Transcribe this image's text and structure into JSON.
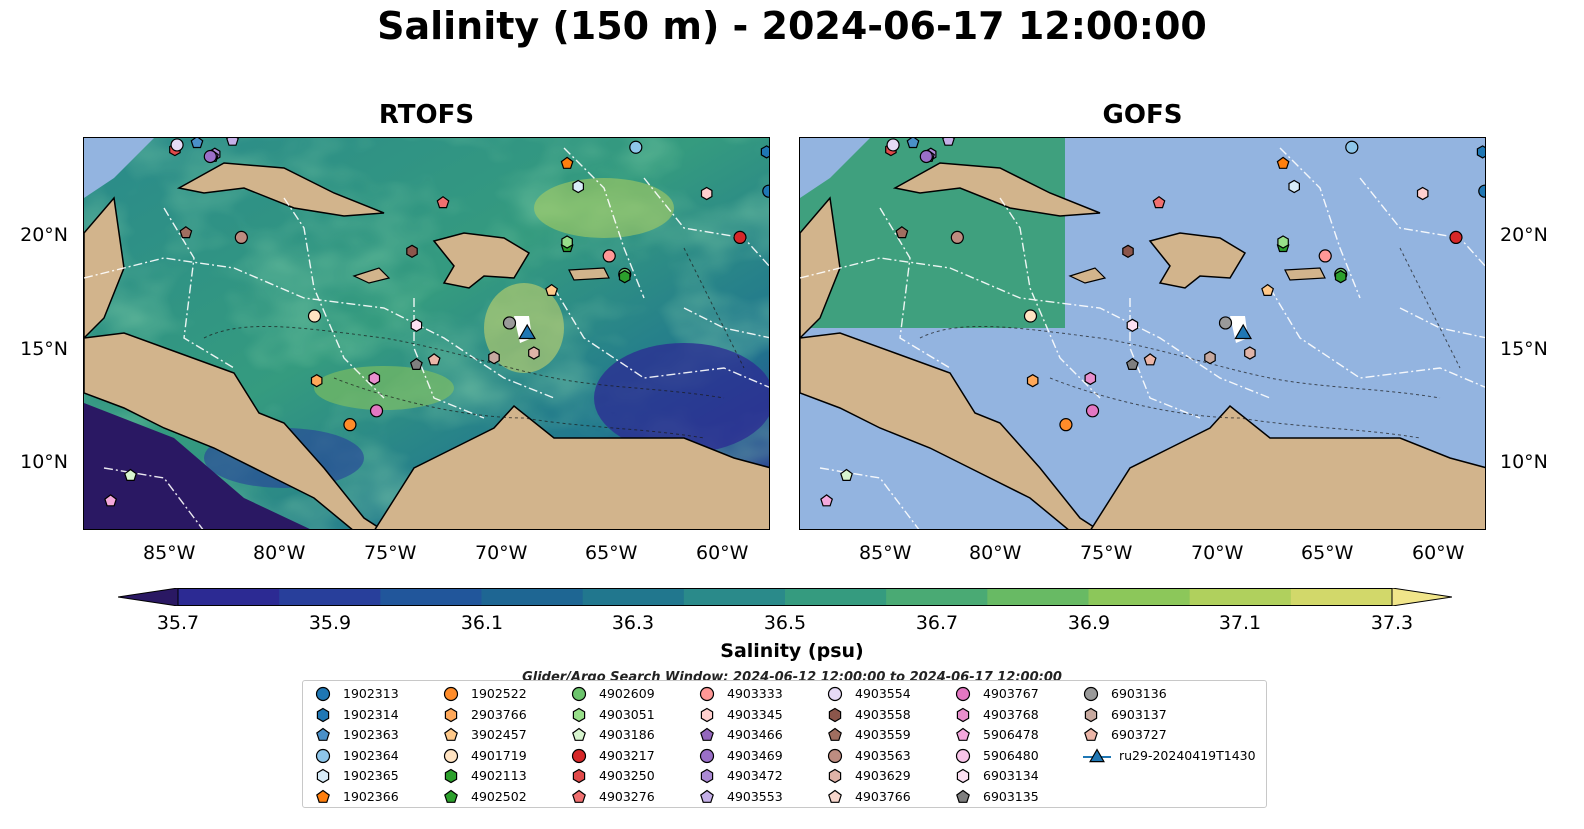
{
  "title": "Salinity (150 m) - 2024-06-17 12:00:00",
  "panels": [
    {
      "title": "RTOFS"
    },
    {
      "title": "GOFS"
    }
  ],
  "axes": {
    "lon_ticks": [
      "85°W",
      "80°W",
      "75°W",
      "70°W",
      "65°W",
      "60°W"
    ],
    "lat_ticks": [
      "20°N",
      "15°N",
      "10°N"
    ],
    "lon_range": [
      -89,
      -58
    ],
    "lat_range": [
      7,
      24
    ]
  },
  "colorbar": {
    "ticks": [
      "35.7",
      "35.9",
      "36.1",
      "36.3",
      "36.5",
      "36.7",
      "36.9",
      "37.1",
      "37.3"
    ],
    "label": "Salinity (psu)",
    "range": [
      35.7,
      37.3
    ],
    "extend": "both",
    "colormap": [
      "#2a1863",
      "#2c2a93",
      "#283f9b",
      "#21569b",
      "#1e6693",
      "#21778e",
      "#2a8a8a",
      "#359b7f",
      "#4aaa74",
      "#68ba64",
      "#8cc75a",
      "#b0d05d",
      "#d2d86a",
      "#f0e58a"
    ]
  },
  "search_window": "Glider/Argo Search Window: 2024-06-12 12:00:00 to 2024-06-17 12:00:00",
  "colors": {
    "land": "#d2b48c",
    "ocean_masked": "#93b4e0",
    "rivers": "#9ab4d8"
  },
  "legend": [
    {
      "label": "1902313",
      "marker": "circle",
      "color": "#1f77b4"
    },
    {
      "label": "1902314",
      "marker": "hexagon",
      "color": "#1f77b4"
    },
    {
      "label": "1902363",
      "marker": "pentagon",
      "color": "#4a90c8"
    },
    {
      "label": "1902364",
      "marker": "circle",
      "color": "#8ec6ea"
    },
    {
      "label": "1902365",
      "marker": "hexagon",
      "color": "#d8ecf8"
    },
    {
      "label": "1902366",
      "marker": "pentagon",
      "color": "#ff7f0e"
    },
    {
      "label": "1902522",
      "marker": "circle",
      "color": "#ff8c2a"
    },
    {
      "label": "2903766",
      "marker": "hexagon",
      "color": "#ffa859"
    },
    {
      "label": "3902457",
      "marker": "pentagon",
      "color": "#ffc98a"
    },
    {
      "label": "4901719",
      "marker": "circle",
      "color": "#ffe3c2"
    },
    {
      "label": "4902113",
      "marker": "hexagon",
      "color": "#2ca02c"
    },
    {
      "label": "4902502",
      "marker": "pentagon",
      "color": "#2ca02c"
    },
    {
      "label": "4902609",
      "marker": "circle",
      "color": "#6cc46c"
    },
    {
      "label": "4903051",
      "marker": "hexagon",
      "color": "#98df8a"
    },
    {
      "label": "4903186",
      "marker": "pentagon",
      "color": "#d8f5cf"
    },
    {
      "label": "4903217",
      "marker": "circle",
      "color": "#d62728"
    },
    {
      "label": "4903250",
      "marker": "hexagon",
      "color": "#e04a4a"
    },
    {
      "label": "4903276",
      "marker": "pentagon",
      "color": "#f07070"
    },
    {
      "label": "4903333",
      "marker": "circle",
      "color": "#ff9896"
    },
    {
      "label": "4903345",
      "marker": "hexagon",
      "color": "#ffd0cf"
    },
    {
      "label": "4903466",
      "marker": "pentagon",
      "color": "#9467bd"
    },
    {
      "label": "4903469",
      "marker": "circle",
      "color": "#9a6fc8"
    },
    {
      "label": "4903472",
      "marker": "hexagon",
      "color": "#ab8ad4"
    },
    {
      "label": "4903553",
      "marker": "pentagon",
      "color": "#c5b0e8"
    },
    {
      "label": "4903554",
      "marker": "circle",
      "color": "#e6daf6"
    },
    {
      "label": "4903558",
      "marker": "hexagon",
      "color": "#8c564b"
    },
    {
      "label": "4903559",
      "marker": "pentagon",
      "color": "#a06e60"
    },
    {
      "label": "4903563",
      "marker": "circle",
      "color": "#bd8c80"
    },
    {
      "label": "4903629",
      "marker": "hexagon",
      "color": "#e0b4a8"
    },
    {
      "label": "4903766",
      "marker": "pentagon",
      "color": "#f7d6cc"
    },
    {
      "label": "4903767",
      "marker": "circle",
      "color": "#e377c2"
    },
    {
      "label": "4903768",
      "marker": "hexagon",
      "color": "#e88fcd"
    },
    {
      "label": "5906478",
      "marker": "pentagon",
      "color": "#f4a8dc"
    },
    {
      "label": "5906480",
      "marker": "circle",
      "color": "#f8c4e8"
    },
    {
      "label": "6903134",
      "marker": "hexagon",
      "color": "#fce0f2"
    },
    {
      "label": "6903135",
      "marker": "pentagon",
      "color": "#7f7f7f"
    },
    {
      "label": "6903136",
      "marker": "circle",
      "color": "#9a9a9a"
    },
    {
      "label": "6903137",
      "marker": "hexagon",
      "color": "#c7a99f"
    },
    {
      "label": "6903727",
      "marker": "pentagon",
      "color": "#ecb6a8"
    },
    {
      "label": "ru29-20240419T1430",
      "marker": "triangle-line",
      "color": "#1f77b4"
    }
  ],
  "floats": [
    {
      "id": "1902313",
      "lon": -58.1,
      "lat": 21.7
    },
    {
      "id": "1902314",
      "lon": -58.2,
      "lat": 23.4
    },
    {
      "id": "1902364",
      "lon": -64.1,
      "lat": 23.6
    },
    {
      "id": "1902365",
      "lon": -66.7,
      "lat": 21.9
    },
    {
      "id": "1902366",
      "lon": -67.2,
      "lat": 22.9
    },
    {
      "id": "1902522",
      "lon": -77.0,
      "lat": 11.6
    },
    {
      "id": "2903766",
      "lon": -78.5,
      "lat": 13.5
    },
    {
      "id": "3902457",
      "lon": -67.9,
      "lat": 17.4
    },
    {
      "id": "4901719",
      "lon": -78.6,
      "lat": 16.3
    },
    {
      "id": "4902502",
      "lon": -67.2,
      "lat": 19.3
    },
    {
      "id": "4902609",
      "lon": -64.6,
      "lat": 18.1
    },
    {
      "id": "4903051",
      "lon": -67.2,
      "lat": 19.5
    },
    {
      "id": "4903186",
      "lon": -86.9,
      "lat": 9.4
    },
    {
      "id": "4903217",
      "lon": -59.4,
      "lat": 19.7
    },
    {
      "id": "4903250",
      "lon": -84.9,
      "lat": 23.5
    },
    {
      "id": "4903276",
      "lon": -72.8,
      "lat": 21.2
    },
    {
      "id": "4903333",
      "lon": -65.3,
      "lat": 18.9
    },
    {
      "id": "4903345",
      "lon": -60.9,
      "lat": 21.6
    },
    {
      "id": "4903472",
      "lon": -83.1,
      "lat": 23.3
    },
    {
      "id": "4903553",
      "lon": -82.3,
      "lat": 23.9
    },
    {
      "id": "4903554",
      "lon": -84.8,
      "lat": 23.7
    },
    {
      "id": "4903558",
      "lon": -74.2,
      "lat": 19.1
    },
    {
      "id": "4903559",
      "lon": -84.4,
      "lat": 19.9
    },
    {
      "id": "4903563",
      "lon": -81.9,
      "lat": 19.7
    },
    {
      "id": "4903629",
      "lon": -68.7,
      "lat": 14.7
    },
    {
      "id": "4903767",
      "lon": -75.8,
      "lat": 12.2
    },
    {
      "id": "4903768",
      "lon": -75.9,
      "lat": 13.6
    },
    {
      "id": "5906478",
      "lon": -87.8,
      "lat": 8.3
    },
    {
      "id": "6903134",
      "lon": -74.0,
      "lat": 15.9
    },
    {
      "id": "6903135",
      "lon": -74.0,
      "lat": 14.2
    },
    {
      "id": "6903136",
      "lon": -69.8,
      "lat": 16.0
    },
    {
      "id": "6903727",
      "lon": -73.2,
      "lat": 14.4
    },
    {
      "id": "1902363",
      "lon": -83.9,
      "lat": 23.8
    },
    {
      "id": "4902113",
      "lon": -64.6,
      "lat": 18.0
    },
    {
      "id": "6903137",
      "lon": -70.5,
      "lat": 14.5
    },
    {
      "id": "4903466",
      "lon": -83.2,
      "lat": 23.2
    },
    {
      "id": "4903469",
      "lon": -83.3,
      "lat": 23.2
    }
  ],
  "glider": {
    "id": "ru29-20240419T1430",
    "lon": -69.0,
    "lat": 15.6
  }
}
